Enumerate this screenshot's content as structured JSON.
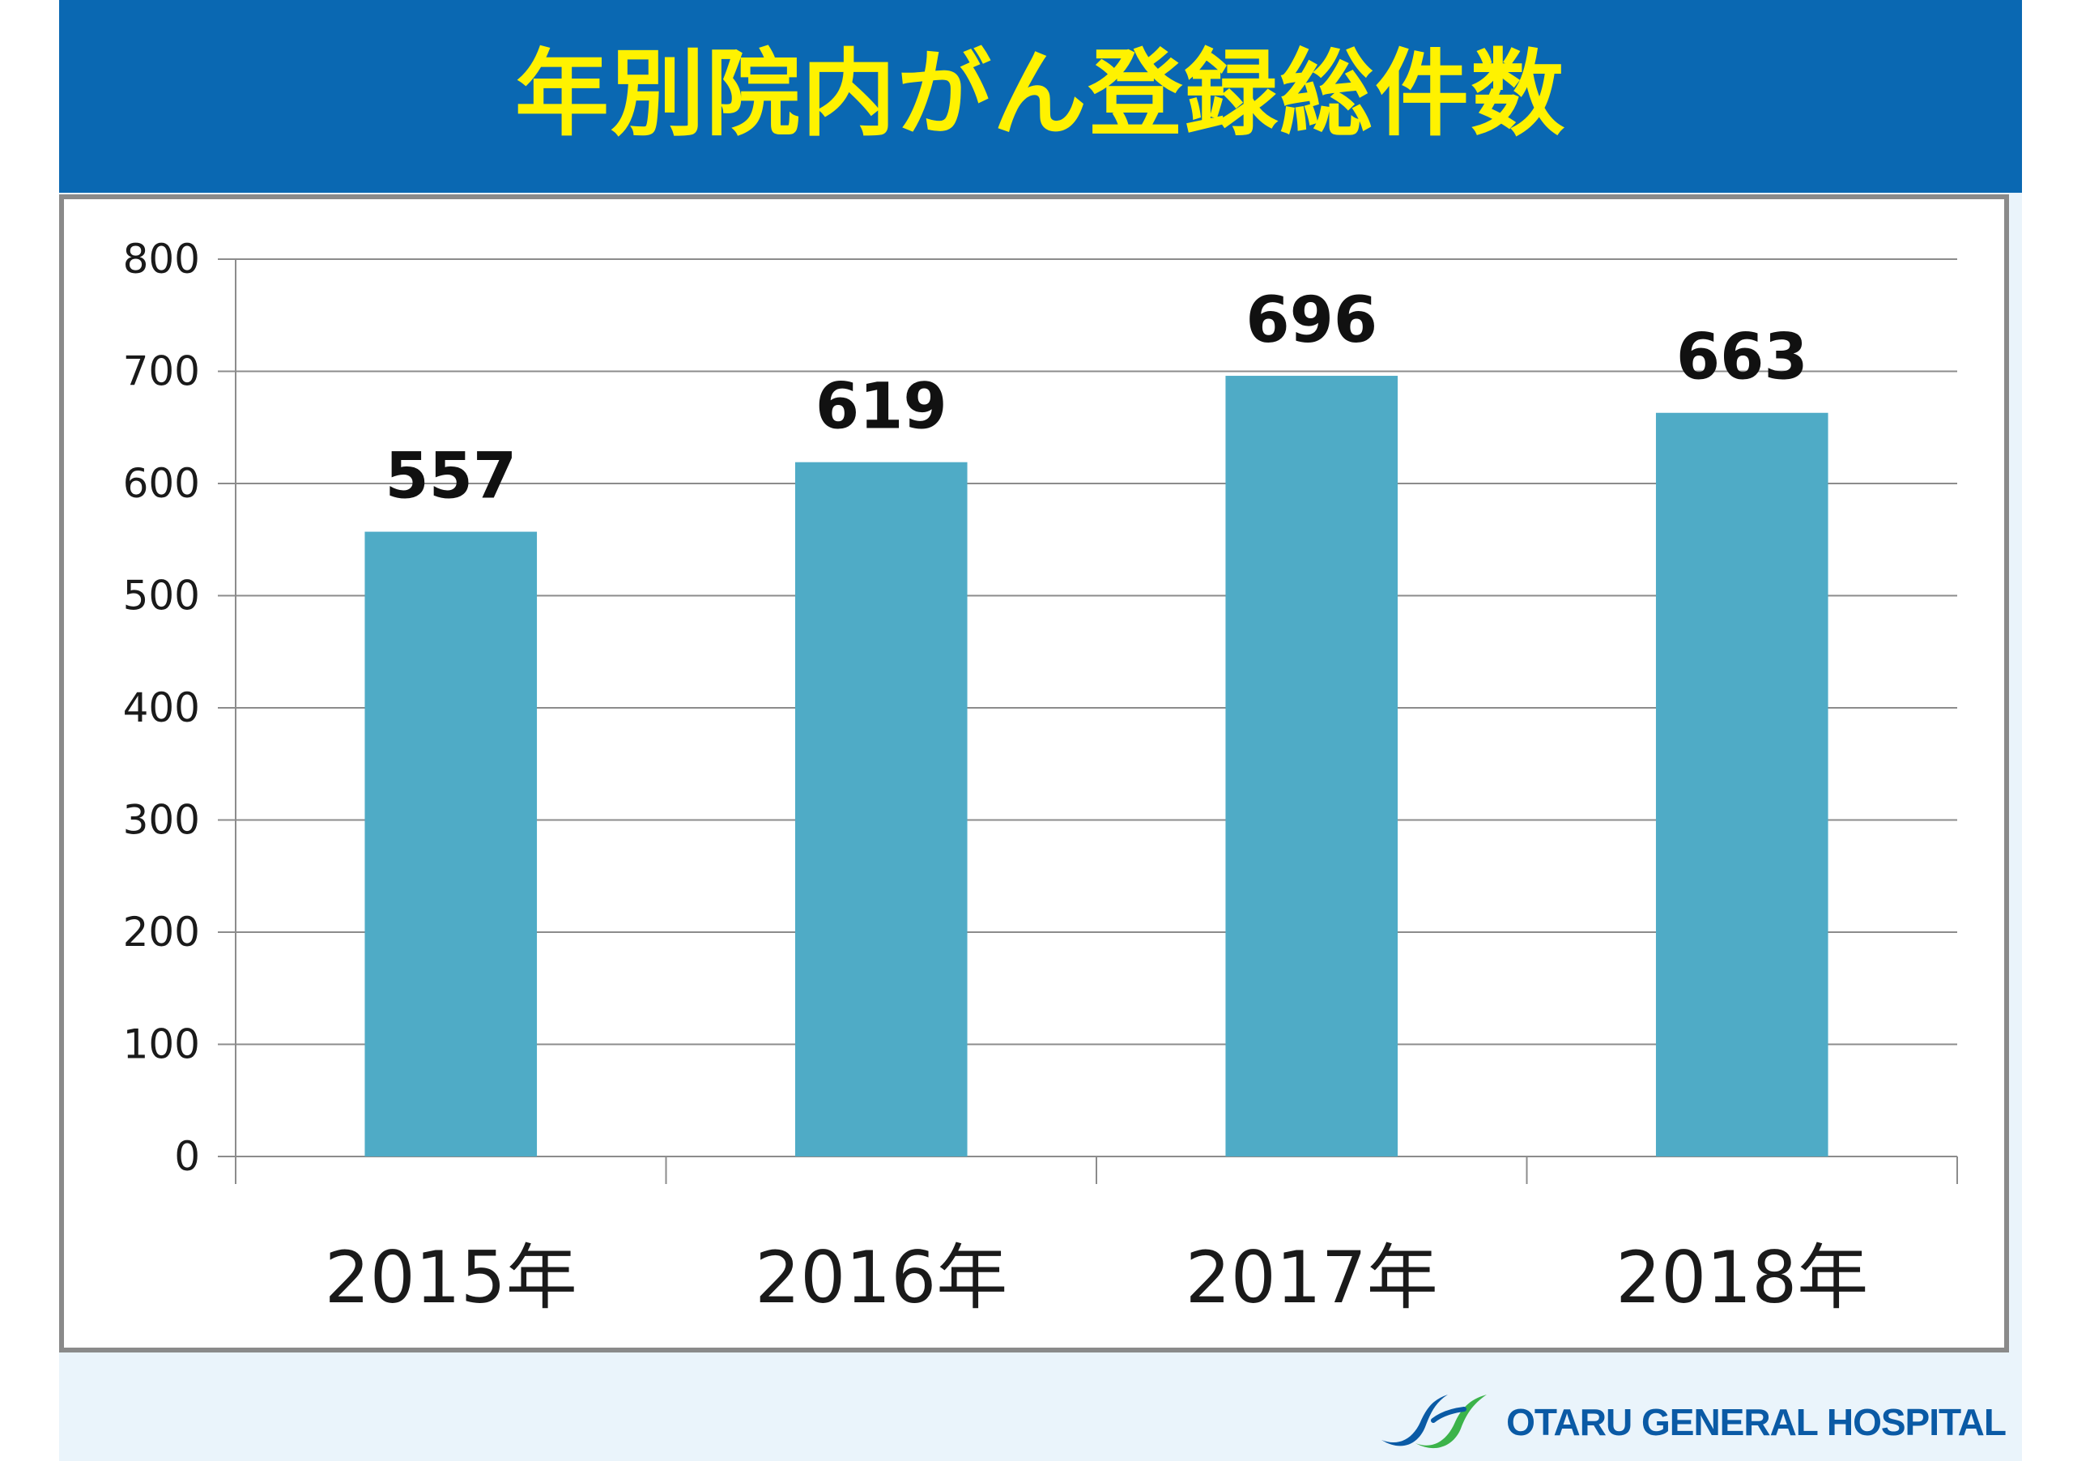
{
  "header": {
    "title": "年別院内がん登録総件数"
  },
  "chart_data": {
    "type": "bar",
    "title": "",
    "xlabel": "",
    "ylabel": "",
    "categories": [
      "2015年",
      "2016年",
      "2017年",
      "2018年"
    ],
    "values": [
      557,
      619,
      696,
      663
    ],
    "data_labels": [
      "557",
      "619",
      "696",
      "663"
    ],
    "ylim": [
      0,
      800
    ],
    "yticks": [
      0,
      100,
      200,
      300,
      400,
      500,
      600,
      700,
      800
    ],
    "ytick_labels": [
      "0",
      "100",
      "200",
      "300",
      "400",
      "500",
      "600",
      "700",
      "800"
    ],
    "grid": true,
    "legend": "none",
    "bar_color": "#4fabc6"
  },
  "colors": {
    "header_bg": "#0a68b2",
    "title_text": "#fff200",
    "slide_bg": "#eaf4fb",
    "logo_text": "#0a5aa5",
    "logo_accent_green": "#3cb34a"
  },
  "footer": {
    "logo_text": "OTARU GENERAL HOSPITAL",
    "logo_icon": "hospital-logo-icon"
  }
}
